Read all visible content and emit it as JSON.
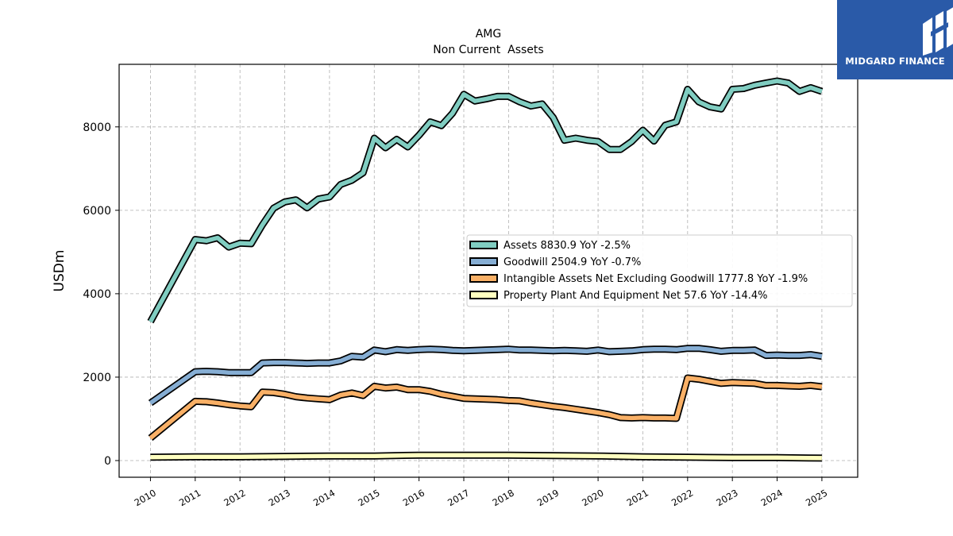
{
  "title_line1": "AMG",
  "title_line2": "Non Current  Assets",
  "ylabel": "USDm",
  "logo_text": "MIDGARD FINANCE",
  "colors": {
    "assets": "#80cdc1",
    "goodwill": "#86aed4",
    "intangibles": "#f9b066",
    "ppe": "#ffffc0",
    "outline": "#000000",
    "grid": "#b0b0b0",
    "logo_bg": "#2a5aa8"
  },
  "chart_data": {
    "type": "line",
    "title": "AMG\nNon Current  Assets",
    "xlabel": "",
    "ylabel": "USDm",
    "ylim": [
      -400,
      9500
    ],
    "xlim": [
      2009.3,
      2025.8
    ],
    "yticks": [
      0,
      2000,
      4000,
      6000,
      8000
    ],
    "xticks": [
      "2010",
      "2011",
      "2012",
      "2013",
      "2014",
      "2015",
      "2016",
      "2017",
      "2018",
      "2019",
      "2020",
      "2021",
      "2022",
      "2023",
      "2024",
      "2025"
    ],
    "grid": true,
    "legend_position": "center-right",
    "series": [
      {
        "name": "Assets",
        "legend": "Assets  8830.9 YoY -2.5%",
        "color": "#80cdc1",
        "points": [
          [
            2010.0,
            3330
          ],
          [
            2011.0,
            5300
          ],
          [
            2011.25,
            5270
          ],
          [
            2011.5,
            5340
          ],
          [
            2011.75,
            5120
          ],
          [
            2012.0,
            5210
          ],
          [
            2012.25,
            5200
          ],
          [
            2012.5,
            5650
          ],
          [
            2012.75,
            6050
          ],
          [
            2013.0,
            6200
          ],
          [
            2013.25,
            6250
          ],
          [
            2013.5,
            6060
          ],
          [
            2013.75,
            6270
          ],
          [
            2014.0,
            6320
          ],
          [
            2014.25,
            6620
          ],
          [
            2014.5,
            6720
          ],
          [
            2014.75,
            6900
          ],
          [
            2015.0,
            7730
          ],
          [
            2015.25,
            7500
          ],
          [
            2015.5,
            7700
          ],
          [
            2015.75,
            7520
          ],
          [
            2016.0,
            7800
          ],
          [
            2016.25,
            8120
          ],
          [
            2016.5,
            8030
          ],
          [
            2016.75,
            8330
          ],
          [
            2017.0,
            8780
          ],
          [
            2017.25,
            8620
          ],
          [
            2017.5,
            8670
          ],
          [
            2017.75,
            8730
          ],
          [
            2018.0,
            8730
          ],
          [
            2018.25,
            8600
          ],
          [
            2018.5,
            8500
          ],
          [
            2018.75,
            8550
          ],
          [
            2019.0,
            8220
          ],
          [
            2019.25,
            7680
          ],
          [
            2019.5,
            7730
          ],
          [
            2019.75,
            7680
          ],
          [
            2020.0,
            7650
          ],
          [
            2020.25,
            7460
          ],
          [
            2020.5,
            7460
          ],
          [
            2020.75,
            7650
          ],
          [
            2021.0,
            7920
          ],
          [
            2021.25,
            7660
          ],
          [
            2021.5,
            8040
          ],
          [
            2021.75,
            8120
          ],
          [
            2022.0,
            8900
          ],
          [
            2022.25,
            8600
          ],
          [
            2022.5,
            8480
          ],
          [
            2022.75,
            8430
          ],
          [
            2023.0,
            8900
          ],
          [
            2023.25,
            8920
          ],
          [
            2023.5,
            9000
          ],
          [
            2023.75,
            9050
          ],
          [
            2024.0,
            9100
          ],
          [
            2024.25,
            9050
          ],
          [
            2024.5,
            8850
          ],
          [
            2024.75,
            8940
          ],
          [
            2025.0,
            8850
          ]
        ]
      },
      {
        "name": "Goodwill",
        "legend": "Goodwill  2504.9 YoY -0.7%",
        "color": "#86aed4",
        "points": [
          [
            2010.0,
            1380
          ],
          [
            2011.0,
            2130
          ],
          [
            2011.25,
            2140
          ],
          [
            2011.5,
            2130
          ],
          [
            2011.75,
            2110
          ],
          [
            2012.0,
            2110
          ],
          [
            2012.25,
            2110
          ],
          [
            2012.5,
            2340
          ],
          [
            2012.75,
            2350
          ],
          [
            2013.0,
            2350
          ],
          [
            2013.25,
            2340
          ],
          [
            2013.5,
            2330
          ],
          [
            2013.75,
            2340
          ],
          [
            2014.0,
            2340
          ],
          [
            2014.25,
            2390
          ],
          [
            2014.5,
            2500
          ],
          [
            2014.75,
            2480
          ],
          [
            2015.0,
            2650
          ],
          [
            2015.25,
            2610
          ],
          [
            2015.5,
            2660
          ],
          [
            2015.75,
            2640
          ],
          [
            2016.0,
            2660
          ],
          [
            2016.25,
            2670
          ],
          [
            2016.5,
            2660
          ],
          [
            2016.75,
            2640
          ],
          [
            2017.0,
            2630
          ],
          [
            2017.25,
            2640
          ],
          [
            2017.5,
            2650
          ],
          [
            2017.75,
            2660
          ],
          [
            2018.0,
            2670
          ],
          [
            2018.25,
            2650
          ],
          [
            2018.5,
            2650
          ],
          [
            2018.75,
            2640
          ],
          [
            2019.0,
            2630
          ],
          [
            2019.25,
            2640
          ],
          [
            2019.5,
            2630
          ],
          [
            2019.75,
            2620
          ],
          [
            2020.0,
            2650
          ],
          [
            2020.25,
            2610
          ],
          [
            2020.5,
            2620
          ],
          [
            2020.75,
            2630
          ],
          [
            2021.0,
            2660
          ],
          [
            2021.25,
            2670
          ],
          [
            2021.5,
            2670
          ],
          [
            2021.75,
            2660
          ],
          [
            2022.0,
            2690
          ],
          [
            2022.25,
            2690
          ],
          [
            2022.5,
            2660
          ],
          [
            2022.75,
            2620
          ],
          [
            2023.0,
            2640
          ],
          [
            2023.25,
            2640
          ],
          [
            2023.5,
            2650
          ],
          [
            2023.75,
            2520
          ],
          [
            2024.0,
            2530
          ],
          [
            2024.25,
            2520
          ],
          [
            2024.5,
            2520
          ],
          [
            2024.75,
            2540
          ],
          [
            2025.0,
            2500
          ]
        ]
      },
      {
        "name": "Intangible Assets Net Excluding Goodwill",
        "legend": "Intangible Assets Net Excluding Goodwill  1777.8 YoY -1.9%",
        "color": "#f9b066",
        "points": [
          [
            2010.0,
            540
          ],
          [
            2011.0,
            1420
          ],
          [
            2011.25,
            1410
          ],
          [
            2011.5,
            1380
          ],
          [
            2011.75,
            1340
          ],
          [
            2012.0,
            1310
          ],
          [
            2012.25,
            1290
          ],
          [
            2012.5,
            1640
          ],
          [
            2012.75,
            1630
          ],
          [
            2013.0,
            1590
          ],
          [
            2013.25,
            1530
          ],
          [
            2013.5,
            1500
          ],
          [
            2013.75,
            1480
          ],
          [
            2014.0,
            1460
          ],
          [
            2014.25,
            1570
          ],
          [
            2014.5,
            1620
          ],
          [
            2014.75,
            1560
          ],
          [
            2015.0,
            1780
          ],
          [
            2015.25,
            1740
          ],
          [
            2015.5,
            1760
          ],
          [
            2015.75,
            1700
          ],
          [
            2016.0,
            1700
          ],
          [
            2016.25,
            1660
          ],
          [
            2016.5,
            1590
          ],
          [
            2016.75,
            1540
          ],
          [
            2017.0,
            1490
          ],
          [
            2017.25,
            1480
          ],
          [
            2017.5,
            1470
          ],
          [
            2017.75,
            1460
          ],
          [
            2018.0,
            1440
          ],
          [
            2018.25,
            1430
          ],
          [
            2018.5,
            1380
          ],
          [
            2018.75,
            1340
          ],
          [
            2019.0,
            1300
          ],
          [
            2019.25,
            1270
          ],
          [
            2019.5,
            1230
          ],
          [
            2019.75,
            1190
          ],
          [
            2020.0,
            1150
          ],
          [
            2020.25,
            1100
          ],
          [
            2020.5,
            1030
          ],
          [
            2020.75,
            1020
          ],
          [
            2021.0,
            1030
          ],
          [
            2021.25,
            1020
          ],
          [
            2021.5,
            1020
          ],
          [
            2021.75,
            1010
          ],
          [
            2022.0,
            1980
          ],
          [
            2022.25,
            1950
          ],
          [
            2022.5,
            1900
          ],
          [
            2022.75,
            1850
          ],
          [
            2023.0,
            1870
          ],
          [
            2023.25,
            1860
          ],
          [
            2023.5,
            1850
          ],
          [
            2023.75,
            1800
          ],
          [
            2024.0,
            1800
          ],
          [
            2024.25,
            1790
          ],
          [
            2024.5,
            1780
          ],
          [
            2024.75,
            1800
          ],
          [
            2025.0,
            1770
          ]
        ]
      },
      {
        "name": "Property Plant And Equipment Net",
        "legend": "Property Plant And Equipment Net  57.6 YoY -14.4%",
        "color": "#ffffc0",
        "points": [
          [
            2010.0,
            80
          ],
          [
            2011.0,
            90
          ],
          [
            2012.0,
            90
          ],
          [
            2013.0,
            100
          ],
          [
            2014.0,
            110
          ],
          [
            2015.0,
            110
          ],
          [
            2016.0,
            130
          ],
          [
            2017.0,
            130
          ],
          [
            2018.0,
            130
          ],
          [
            2019.0,
            120
          ],
          [
            2020.0,
            110
          ],
          [
            2021.0,
            90
          ],
          [
            2022.0,
            80
          ],
          [
            2023.0,
            70
          ],
          [
            2024.0,
            70
          ],
          [
            2025.0,
            58
          ]
        ]
      }
    ]
  }
}
